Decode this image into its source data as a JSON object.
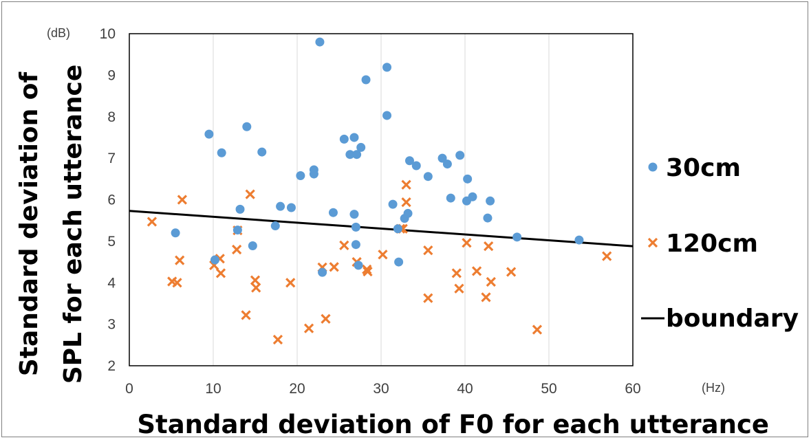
{
  "chart_data": {
    "type": "scatter",
    "xlabel": "Standard deviation of F0 for each utterance",
    "ylabel_line1": "Standard deviation of",
    "ylabel_line2": "SPL for each utterance",
    "x_unit": "(Hz)",
    "y_unit": "(dB)",
    "xlim": [
      0,
      60
    ],
    "ylim": [
      2,
      10
    ],
    "x_ticks": [
      "0",
      "10",
      "20",
      "30",
      "40",
      "50",
      "60"
    ],
    "y_ticks": [
      "2",
      "3",
      "4",
      "5",
      "6",
      "7",
      "8",
      "9",
      "10"
    ],
    "grid": "vertical",
    "legend_position": "right",
    "colors": {
      "series_30cm": "#5b9bd5",
      "series_120cm": "#ed7d31",
      "boundary": "#000000"
    },
    "series": [
      {
        "name": "30cm",
        "marker": "circle",
        "points": [
          [
            5.5,
            5.2
          ],
          [
            9.5,
            7.58
          ],
          [
            10.2,
            4.55
          ],
          [
            11.0,
            7.13
          ],
          [
            13.2,
            5.77
          ],
          [
            12.9,
            5.27
          ],
          [
            14.0,
            7.76
          ],
          [
            14.7,
            4.89
          ],
          [
            15.8,
            7.15
          ],
          [
            17.4,
            5.37
          ],
          [
            18.0,
            5.84
          ],
          [
            19.3,
            5.81
          ],
          [
            20.4,
            6.58
          ],
          [
            22.0,
            6.72
          ],
          [
            22.0,
            6.62
          ],
          [
            22.7,
            9.8
          ],
          [
            23.0,
            4.25
          ],
          [
            24.3,
            5.69
          ],
          [
            25.6,
            7.46
          ],
          [
            26.3,
            7.09
          ],
          [
            26.8,
            7.5
          ],
          [
            26.8,
            5.65
          ],
          [
            27.0,
            5.34
          ],
          [
            27.0,
            4.92
          ],
          [
            27.1,
            7.09
          ],
          [
            27.3,
            4.42
          ],
          [
            27.6,
            7.26
          ],
          [
            28.2,
            8.89
          ],
          [
            30.7,
            8.03
          ],
          [
            30.7,
            9.19
          ],
          [
            31.4,
            5.89
          ],
          [
            32.0,
            5.3
          ],
          [
            32.1,
            4.5
          ],
          [
            32.8,
            5.55
          ],
          [
            33.2,
            5.67
          ],
          [
            33.4,
            6.94
          ],
          [
            34.2,
            6.82
          ],
          [
            35.6,
            6.56
          ],
          [
            37.3,
            7.0
          ],
          [
            37.9,
            6.86
          ],
          [
            38.3,
            6.04
          ],
          [
            39.4,
            7.07
          ],
          [
            40.3,
            6.5
          ],
          [
            40.2,
            5.97
          ],
          [
            40.9,
            6.07
          ],
          [
            42.7,
            5.56
          ],
          [
            43.0,
            5.97
          ],
          [
            46.2,
            5.1
          ],
          [
            53.6,
            5.03
          ]
        ]
      },
      {
        "name": "120cm",
        "marker": "x",
        "points": [
          [
            2.7,
            5.47
          ],
          [
            5.1,
            4.03
          ],
          [
            5.7,
            4.0
          ],
          [
            6.0,
            4.54
          ],
          [
            6.3,
            6.0
          ],
          [
            10.1,
            4.42
          ],
          [
            10.8,
            4.58
          ],
          [
            10.9,
            4.23
          ],
          [
            12.8,
            4.8
          ],
          [
            12.9,
            5.26
          ],
          [
            13.9,
            3.22
          ],
          [
            14.4,
            6.13
          ],
          [
            15.0,
            4.06
          ],
          [
            15.1,
            3.88
          ],
          [
            17.7,
            2.63
          ],
          [
            19.2,
            4.0
          ],
          [
            21.4,
            2.9
          ],
          [
            23.0,
            4.37
          ],
          [
            23.4,
            3.13
          ],
          [
            24.4,
            4.38
          ],
          [
            25.6,
            4.9
          ],
          [
            27.1,
            4.5
          ],
          [
            28.3,
            4.32
          ],
          [
            28.4,
            4.27
          ],
          [
            30.2,
            4.68
          ],
          [
            32.3,
            5.3
          ],
          [
            32.6,
            5.3
          ],
          [
            33.0,
            5.94
          ],
          [
            33.0,
            6.36
          ],
          [
            35.6,
            3.63
          ],
          [
            35.6,
            4.78
          ],
          [
            39.0,
            4.23
          ],
          [
            39.3,
            3.86
          ],
          [
            40.2,
            4.96
          ],
          [
            41.4,
            4.28
          ],
          [
            42.5,
            3.65
          ],
          [
            42.8,
            4.88
          ],
          [
            43.1,
            4.02
          ],
          [
            45.5,
            4.26
          ],
          [
            48.6,
            2.87
          ],
          [
            56.9,
            4.64
          ]
        ]
      }
    ],
    "boundary": {
      "name": "boundary",
      "x": [
        0,
        60
      ],
      "y": [
        5.73,
        4.88
      ]
    }
  }
}
